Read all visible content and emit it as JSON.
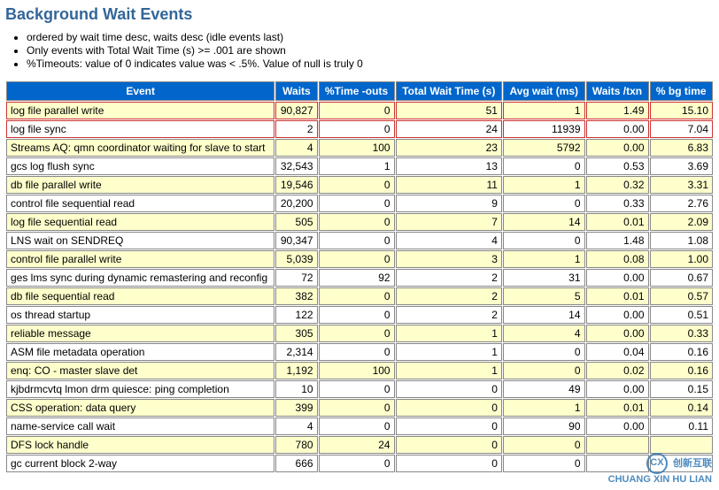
{
  "title": "Background Wait Events",
  "notes": [
    "ordered by wait time desc, waits desc (idle events last)",
    "Only events with Total Wait Time (s) >= .001 are shown",
    "%Timeouts: value of 0 indicates value was < .5%. Value of null is truly 0"
  ],
  "table": {
    "columns": [
      "Event",
      "Waits",
      "%Time -outs",
      "Total Wait Time (s)",
      "Avg wait (ms)",
      "Waits /txn",
      "% bg time"
    ],
    "highlight_rows": [
      0,
      1
    ],
    "rows": [
      [
        "log file parallel write",
        "90,827",
        "0",
        "51",
        "1",
        "1.49",
        "15.10"
      ],
      [
        "log file sync",
        "2",
        "0",
        "24",
        "11939",
        "0.00",
        "7.04"
      ],
      [
        "Streams AQ: qmn coordinator waiting for slave to start",
        "4",
        "100",
        "23",
        "5792",
        "0.00",
        "6.83"
      ],
      [
        "gcs log flush sync",
        "32,543",
        "1",
        "13",
        "0",
        "0.53",
        "3.69"
      ],
      [
        "db file parallel write",
        "19,546",
        "0",
        "11",
        "1",
        "0.32",
        "3.31"
      ],
      [
        "control file sequential read",
        "20,200",
        "0",
        "9",
        "0",
        "0.33",
        "2.76"
      ],
      [
        "log file sequential read",
        "505",
        "0",
        "7",
        "14",
        "0.01",
        "2.09"
      ],
      [
        "LNS wait on SENDREQ",
        "90,347",
        "0",
        "4",
        "0",
        "1.48",
        "1.08"
      ],
      [
        "control file parallel write",
        "5,039",
        "0",
        "3",
        "1",
        "0.08",
        "1.00"
      ],
      [
        "ges lms sync during dynamic remastering and reconfig",
        "72",
        "92",
        "2",
        "31",
        "0.00",
        "0.67"
      ],
      [
        "db file sequential read",
        "382",
        "0",
        "2",
        "5",
        "0.01",
        "0.57"
      ],
      [
        "os thread startup",
        "122",
        "0",
        "2",
        "14",
        "0.00",
        "0.51"
      ],
      [
        "reliable message",
        "305",
        "0",
        "1",
        "4",
        "0.00",
        "0.33"
      ],
      [
        "ASM file metadata operation",
        "2,314",
        "0",
        "1",
        "0",
        "0.04",
        "0.16"
      ],
      [
        "enq: CO - master slave det",
        "1,192",
        "100",
        "1",
        "0",
        "0.02",
        "0.16"
      ],
      [
        "kjbdrmcvtq lmon drm quiesce: ping completion",
        "10",
        "0",
        "0",
        "49",
        "0.00",
        "0.15"
      ],
      [
        "CSS operation: data query",
        "399",
        "0",
        "0",
        "1",
        "0.01",
        "0.14"
      ],
      [
        "name-service call wait",
        "4",
        "0",
        "0",
        "90",
        "0.00",
        "0.11"
      ],
      [
        "DFS lock handle",
        "780",
        "24",
        "0",
        "0",
        "",
        ""
      ],
      [
        "gc current block 2-way",
        "666",
        "0",
        "0",
        "0",
        "",
        ""
      ]
    ]
  },
  "watermark": {
    "brand": "创新互联",
    "sub": "CHUANG XIN HU LIAN"
  },
  "colors": {
    "title_color": "#336699",
    "header_bg": "#0066cc",
    "header_fg": "#ffffff",
    "row_odd_bg": "#ffffcc",
    "row_even_bg": "#ffffff",
    "border_color": "#888888",
    "highlight_border": "#cc3333"
  }
}
